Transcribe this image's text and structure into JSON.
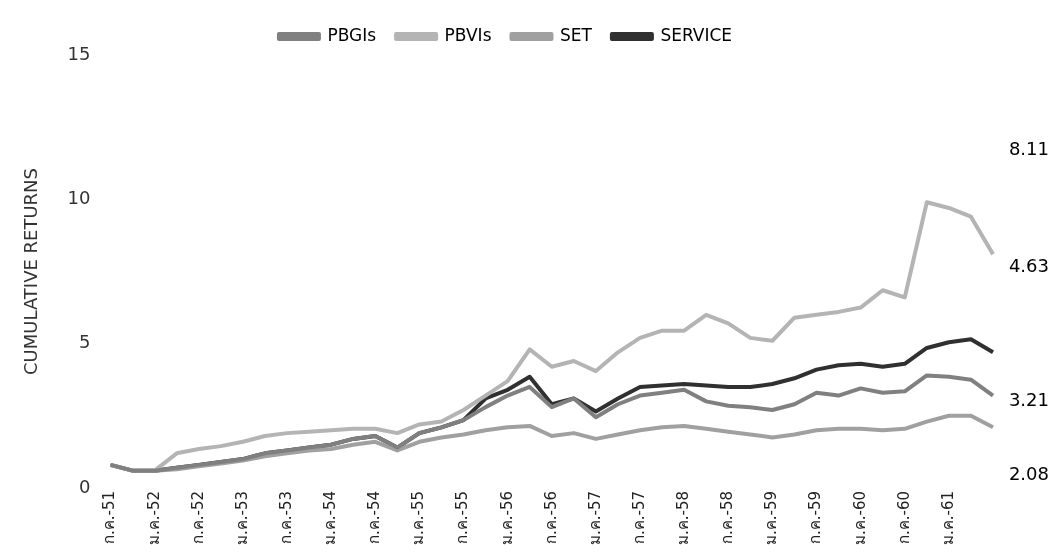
{
  "chart_data": {
    "type": "line",
    "ylabel": "CUMULATIVE RETURNS",
    "categories": [
      "ก.ค.-51",
      null,
      "ม.ค.-52",
      null,
      "ก.ค.-52",
      null,
      "ม.ค.-53",
      null,
      "ก.ค.-53",
      null,
      "ม.ค.-54",
      null,
      "ก.ค.-54",
      null,
      "ม.ค.-55",
      null,
      "ก.ค.-55",
      null,
      "ม.ค.-56",
      null,
      "ก.ค.-56",
      null,
      "ม.ค.-57",
      null,
      "ก.ค.-57",
      null,
      "ม.ค.-58",
      null,
      "ก.ค.-58",
      null,
      "ม.ค.-59",
      null,
      "ก.ค.-59",
      null,
      "ม.ค.-60",
      null,
      "ก.ค.-60",
      null,
      "ม.ค.-61",
      null,
      null
    ],
    "series": [
      {
        "name": "PBGIs",
        "color": "#808080",
        "values": [
          0.8,
          0.6,
          0.6,
          0.7,
          0.8,
          0.9,
          1.0,
          1.2,
          1.3,
          1.4,
          1.5,
          1.7,
          1.8,
          1.4,
          1.9,
          2.1,
          2.35,
          2.8,
          3.2,
          3.5,
          2.8,
          3.1,
          2.45,
          2.9,
          3.2,
          3.3,
          3.4,
          3.0,
          2.85,
          2.8,
          2.7,
          2.9,
          3.3,
          3.2,
          3.45,
          3.3,
          3.35,
          3.9,
          3.85,
          3.75,
          3.2
        ]
      },
      {
        "name": "PBVIs",
        "color": "#b4b4b4",
        "values": [
          0.8,
          0.6,
          0.6,
          1.2,
          1.35,
          1.45,
          1.6,
          1.8,
          1.9,
          1.95,
          2.0,
          2.05,
          2.05,
          1.9,
          2.2,
          2.3,
          2.7,
          3.2,
          3.7,
          4.8,
          4.2,
          4.4,
          4.05,
          4.7,
          5.2,
          5.45,
          5.45,
          6.0,
          5.7,
          5.2,
          5.1,
          5.9,
          6.0,
          6.1,
          6.25,
          6.85,
          6.6,
          9.9,
          9.7,
          9.4,
          8.1
        ]
      },
      {
        "name": "SET",
        "color": "#a0a0a0",
        "values": [
          0.8,
          0.6,
          0.6,
          0.65,
          0.75,
          0.85,
          0.95,
          1.1,
          1.2,
          1.3,
          1.35,
          1.5,
          1.6,
          1.3,
          1.6,
          1.75,
          1.85,
          2.0,
          2.1,
          2.15,
          1.8,
          1.9,
          1.7,
          1.85,
          2.0,
          2.1,
          2.15,
          2.05,
          1.95,
          1.85,
          1.75,
          1.85,
          2.0,
          2.05,
          2.05,
          2.0,
          2.05,
          2.3,
          2.5,
          2.5,
          2.1
        ]
      },
      {
        "name": "SERVICE",
        "color": "#303030",
        "values": [
          0.8,
          0.6,
          0.6,
          0.7,
          0.8,
          0.9,
          1.0,
          1.2,
          1.3,
          1.4,
          1.5,
          1.7,
          1.8,
          1.4,
          1.9,
          2.1,
          2.35,
          3.1,
          3.4,
          3.85,
          2.9,
          3.1,
          2.65,
          3.1,
          3.5,
          3.55,
          3.6,
          3.55,
          3.5,
          3.5,
          3.6,
          3.8,
          4.1,
          4.25,
          4.3,
          4.2,
          4.3,
          4.85,
          5.05,
          5.15,
          4.7
        ]
      }
    ],
    "ylim": [
      0,
      15
    ],
    "yticks": [
      0,
      5,
      10,
      15
    ],
    "grid": false,
    "legend": "top",
    "annotations": [
      "8.11",
      "4.63",
      "3.21",
      "2.08"
    ]
  }
}
